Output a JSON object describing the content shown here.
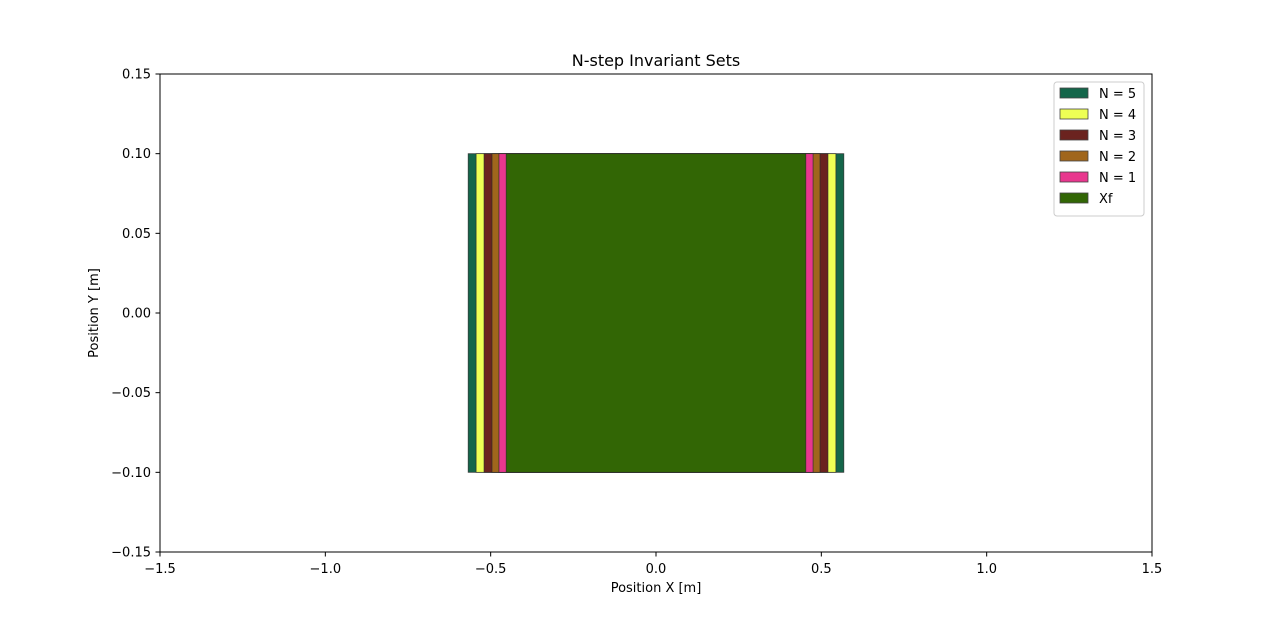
{
  "chart_data": {
    "type": "area",
    "title": "N-step Invariant Sets",
    "xlabel": "Position X [m]",
    "ylabel": "Position Y [m]",
    "xlim": [
      -1.5,
      1.5
    ],
    "ylim": [
      -0.15,
      0.15
    ],
    "xticks": [
      -1.5,
      -1.0,
      -0.5,
      0.0,
      0.5,
      1.0,
      1.5
    ],
    "xtick_labels": [
      "−1.5",
      "−1.0",
      "−0.5",
      "0.0",
      "0.5",
      "1.0",
      "1.5"
    ],
    "yticks": [
      -0.15,
      -0.1,
      -0.05,
      0.0,
      0.05,
      0.1,
      0.15
    ],
    "ytick_labels": [
      "−0.15",
      "−0.10",
      "−0.05",
      "0.00",
      "0.05",
      "0.10",
      "0.15"
    ],
    "grid": false,
    "legend_position": "top-right",
    "series": [
      {
        "name": "N = 5",
        "color": "#14664a",
        "x_range": [
          -0.568,
          0.568
        ],
        "y_range": [
          -0.1,
          0.1
        ]
      },
      {
        "name": "N = 4",
        "color": "#eeff55",
        "x_range": [
          -0.544,
          0.544
        ],
        "y_range": [
          -0.1,
          0.1
        ]
      },
      {
        "name": "N = 3",
        "color": "#6b231f",
        "x_range": [
          -0.52,
          0.52
        ],
        "y_range": [
          -0.1,
          0.1
        ]
      },
      {
        "name": "N = 2",
        "color": "#a0661c",
        "x_range": [
          -0.496,
          0.496
        ],
        "y_range": [
          -0.1,
          0.1
        ]
      },
      {
        "name": "N = 1",
        "color": "#e8378e",
        "x_range": [
          -0.475,
          0.475
        ],
        "y_range": [
          -0.1,
          0.1
        ]
      },
      {
        "name": "Xf",
        "color": "#326605",
        "x_range": [
          -0.453,
          0.453
        ],
        "y_range": [
          -0.1,
          0.1
        ]
      }
    ]
  }
}
